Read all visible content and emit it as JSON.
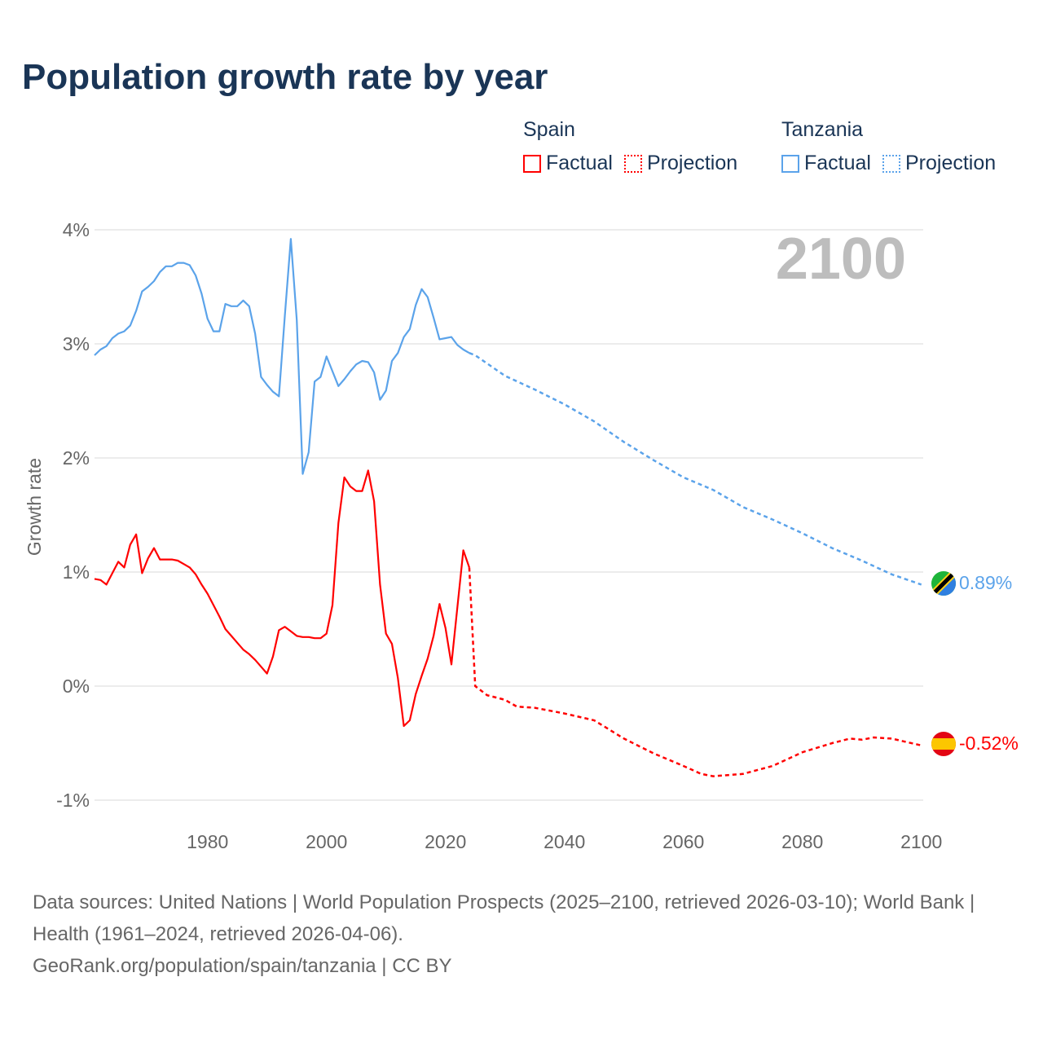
{
  "title": "Population growth rate by year",
  "legend": {
    "spain": {
      "name": "Spain",
      "factual": "Factual",
      "projection": "Projection"
    },
    "tanzania": {
      "name": "Tanzania",
      "factual": "Factual",
      "projection": "Projection"
    }
  },
  "year_watermark": "2100",
  "end_labels": {
    "tanzania": "0.89%",
    "spain": "-0.52%"
  },
  "footer": {
    "sources": "Data sources: United Nations | World Population Prospects (2025–2100, retrieved 2026-03-10); World Bank | Health (1961–2024, retrieved 2026-04-06).",
    "credit": "GeoRank.org/population/spain/tanzania | CC BY"
  },
  "colors": {
    "spain": "#ff0000",
    "tanzania": "#5ba3ea",
    "title": "#1a3556"
  },
  "chart_data": {
    "type": "line",
    "title": "Population growth rate by year",
    "xlabel": "",
    "ylabel": "Growth rate",
    "xlim": [
      1961,
      2100
    ],
    "ylim": [
      -1.2,
      4.1
    ],
    "x_ticks": [
      1980,
      2000,
      2020,
      2040,
      2060,
      2080,
      2100
    ],
    "y_ticks": [
      -1,
      0,
      1,
      2,
      3,
      4
    ],
    "y_tick_labels": [
      "-1%",
      "0%",
      "1%",
      "2%",
      "3%",
      "4%"
    ],
    "grid": true,
    "legend_position": "top-right",
    "series": [
      {
        "name": "Tanzania",
        "color": "#5ba3ea",
        "factual": {
          "x": [
            1961,
            1962,
            1963,
            1964,
            1965,
            1966,
            1967,
            1968,
            1969,
            1970,
            1971,
            1972,
            1973,
            1974,
            1975,
            1976,
            1977,
            1978,
            1979,
            1980,
            1981,
            1982,
            1983,
            1984,
            1985,
            1986,
            1987,
            1988,
            1989,
            1990,
            1991,
            1992,
            1993,
            1994,
            1995,
            1996,
            1997,
            1998,
            1999,
            2000,
            2001,
            2002,
            2003,
            2004,
            2005,
            2006,
            2007,
            2008,
            2009,
            2010,
            2011,
            2012,
            2013,
            2014,
            2015,
            2016,
            2017,
            2018,
            2019,
            2020,
            2021,
            2022,
            2023,
            2024
          ],
          "y": [
            2.9,
            2.95,
            2.98,
            3.05,
            3.09,
            3.11,
            3.16,
            3.29,
            3.46,
            3.5,
            3.55,
            3.63,
            3.68,
            3.68,
            3.71,
            3.71,
            3.69,
            3.6,
            3.44,
            3.22,
            3.11,
            3.11,
            3.35,
            3.33,
            3.33,
            3.38,
            3.33,
            3.09,
            2.71,
            2.64,
            2.58,
            2.54,
            3.25,
            3.92,
            3.21,
            1.86,
            2.05,
            2.67,
            2.71,
            2.89,
            2.76,
            2.63,
            2.69,
            2.76,
            2.82,
            2.85,
            2.84,
            2.75,
            2.51,
            2.59,
            2.85,
            2.92,
            3.06,
            3.13,
            3.34,
            3.48,
            3.41,
            3.23,
            3.04,
            3.05,
            3.06,
            2.99,
            2.95,
            2.92
          ]
        },
        "projection": {
          "x": [
            2025,
            2030,
            2035,
            2040,
            2045,
            2050,
            2055,
            2060,
            2065,
            2070,
            2075,
            2080,
            2085,
            2090,
            2095,
            2100
          ],
          "y": [
            2.9,
            2.72,
            2.6,
            2.47,
            2.32,
            2.14,
            1.98,
            1.83,
            1.72,
            1.57,
            1.46,
            1.34,
            1.21,
            1.1,
            0.98,
            0.89
          ]
        }
      },
      {
        "name": "Spain",
        "color": "#ff0000",
        "factual": {
          "x": [
            1961,
            1962,
            1963,
            1964,
            1965,
            1966,
            1967,
            1968,
            1969,
            1970,
            1971,
            1972,
            1973,
            1974,
            1975,
            1976,
            1977,
            1978,
            1979,
            1980,
            1981,
            1982,
            1983,
            1984,
            1985,
            1986,
            1987,
            1988,
            1989,
            1990,
            1991,
            1992,
            1993,
            1994,
            1995,
            1996,
            1997,
            1998,
            1999,
            2000,
            2001,
            2002,
            2003,
            2004,
            2005,
            2006,
            2007,
            2008,
            2009,
            2010,
            2011,
            2012,
            2013,
            2014,
            2015,
            2016,
            2017,
            2018,
            2019,
            2020,
            2021,
            2022,
            2023,
            2024
          ],
          "y": [
            0.94,
            0.93,
            0.89,
            0.99,
            1.09,
            1.04,
            1.24,
            1.33,
            0.99,
            1.12,
            1.21,
            1.11,
            1.11,
            1.11,
            1.1,
            1.07,
            1.04,
            0.98,
            0.89,
            0.81,
            0.71,
            0.61,
            0.5,
            0.44,
            0.38,
            0.32,
            0.28,
            0.23,
            0.17,
            0.11,
            0.26,
            0.49,
            0.52,
            0.48,
            0.44,
            0.43,
            0.43,
            0.42,
            0.42,
            0.46,
            0.71,
            1.43,
            1.83,
            1.75,
            1.71,
            1.71,
            1.89,
            1.62,
            0.89,
            0.46,
            0.37,
            0.07,
            -0.35,
            -0.3,
            -0.07,
            0.09,
            0.24,
            0.44,
            0.72,
            0.51,
            0.19,
            0.69,
            1.19,
            1.04
          ]
        },
        "projection": {
          "x": [
            2025,
            2027,
            2030,
            2032,
            2035,
            2040,
            2045,
            2050,
            2055,
            2060,
            2063,
            2065,
            2070,
            2075,
            2080,
            2085,
            2088,
            2090,
            2092,
            2095,
            2100
          ],
          "y": [
            0.0,
            -0.08,
            -0.12,
            -0.18,
            -0.19,
            -0.24,
            -0.3,
            -0.46,
            -0.59,
            -0.7,
            -0.77,
            -0.79,
            -0.77,
            -0.7,
            -0.58,
            -0.5,
            -0.46,
            -0.47,
            -0.45,
            -0.46,
            -0.52
          ]
        }
      }
    ]
  }
}
